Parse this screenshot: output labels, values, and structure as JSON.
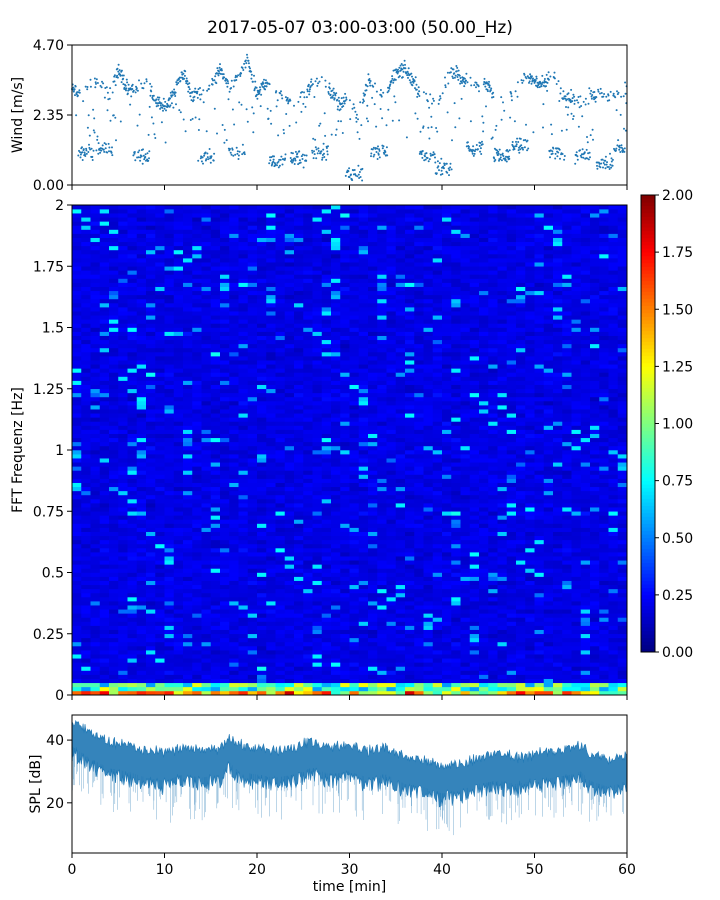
{
  "chart_data": {
    "title": "2017-05-07 03:00-03:00 (50.00_Hz)",
    "panels": [
      {
        "id": "wind",
        "type": "scatter",
        "ylabel": "Wind [m/s]",
        "ylim": [
          0,
          4.7
        ],
        "yticks": [
          0.0,
          2.35,
          4.7
        ],
        "ytick_labels": [
          "0.00",
          "2.35",
          "4.70"
        ],
        "xlim": [
          0,
          60
        ],
        "color": "#1f77b4",
        "trend": [
          [
            0,
            3.2
          ],
          [
            1,
            3.1
          ],
          [
            2,
            3.3
          ],
          [
            3,
            3.6
          ],
          [
            4,
            3.0
          ],
          [
            5,
            3.9
          ],
          [
            6,
            3.2
          ],
          [
            7,
            3.3
          ],
          [
            8,
            3.5
          ],
          [
            9,
            2.8
          ],
          [
            10,
            2.6
          ],
          [
            11,
            3.1
          ],
          [
            12,
            3.8
          ],
          [
            13,
            3.0
          ],
          [
            14,
            3.1
          ],
          [
            15,
            3.3
          ],
          [
            16,
            3.9
          ],
          [
            17,
            3.2
          ],
          [
            18,
            3.6
          ],
          [
            19,
            4.2
          ],
          [
            20,
            3.0
          ],
          [
            21,
            3.5
          ],
          [
            22,
            3.2
          ],
          [
            23,
            2.9
          ],
          [
            24,
            2.8
          ],
          [
            25,
            3.0
          ],
          [
            26,
            3.4
          ],
          [
            27,
            3.6
          ],
          [
            28,
            3.1
          ],
          [
            29,
            2.7
          ],
          [
            30,
            2.9
          ],
          [
            31,
            2.2
          ],
          [
            32,
            3.5
          ],
          [
            33,
            3.2
          ],
          [
            34,
            3.1
          ],
          [
            35,
            3.8
          ],
          [
            36,
            3.9
          ],
          [
            37,
            3.4
          ],
          [
            38,
            3.0
          ],
          [
            39,
            2.8
          ],
          [
            40,
            3.0
          ],
          [
            41,
            3.9
          ],
          [
            42,
            3.6
          ],
          [
            43,
            3.5
          ],
          [
            44,
            3.3
          ],
          [
            45,
            3.4
          ],
          [
            46,
            2.8
          ],
          [
            47,
            2.9
          ],
          [
            48,
            3.2
          ],
          [
            49,
            3.7
          ],
          [
            50,
            3.5
          ],
          [
            51,
            3.3
          ],
          [
            52,
            3.8
          ],
          [
            53,
            3.0
          ],
          [
            54,
            2.9
          ],
          [
            55,
            2.7
          ],
          [
            56,
            3.0
          ],
          [
            57,
            3.1
          ],
          [
            58,
            2.9
          ],
          [
            59,
            3.0
          ],
          [
            60,
            3.2
          ]
        ],
        "dips": [
          [
            1.5,
            1.1
          ],
          [
            3.5,
            1.2
          ],
          [
            7.5,
            1.0
          ],
          [
            14.5,
            1.0
          ],
          [
            17.8,
            1.1
          ],
          [
            22.2,
            0.8
          ],
          [
            24.5,
            0.9
          ],
          [
            26.8,
            1.1
          ],
          [
            30.5,
            0.4
          ],
          [
            33.2,
            1.1
          ],
          [
            38.5,
            1.0
          ],
          [
            40.2,
            0.6
          ],
          [
            43.5,
            1.2
          ],
          [
            46.5,
            1.0
          ],
          [
            48.5,
            1.3
          ],
          [
            52.5,
            1.1
          ],
          [
            55.2,
            1.0
          ],
          [
            57.6,
            0.8
          ],
          [
            59.5,
            1.2
          ]
        ]
      },
      {
        "id": "spectrogram",
        "type": "heatmap",
        "ylabel": "FFT Frequenz [Hz]",
        "ylim": [
          0,
          2
        ],
        "yticks": [
          0,
          0.25,
          0.5,
          0.75,
          1,
          1.25,
          1.5,
          1.75,
          2
        ],
        "ytick_labels": [
          "0",
          "0.25",
          "0.5",
          "0.75",
          "1",
          "1.25",
          "1.5",
          "1.75",
          "2"
        ],
        "xlim": [
          0,
          60
        ],
        "colormap": "jet",
        "colorbar": {
          "vmin": 0,
          "vmax": 2,
          "ticks": [
            0.0,
            0.25,
            0.5,
            0.75,
            1.0,
            1.25,
            1.5,
            1.75,
            2.0
          ],
          "tick_labels": [
            "0.00",
            "0.25",
            "0.50",
            "0.75",
            "1.00",
            "1.25",
            "1.50",
            "1.75",
            "2.00"
          ]
        },
        "typical_level": 0.2,
        "low_freq_level": 1.5
      },
      {
        "id": "spl",
        "type": "area",
        "ylabel": "SPL [dB]",
        "ylim": [
          4,
          48
        ],
        "yticks": [
          20,
          40
        ],
        "ytick_labels": [
          "20",
          "40"
        ],
        "xlabel": "time [min]",
        "xlim": [
          0,
          60
        ],
        "xticks": [
          0,
          10,
          20,
          30,
          40,
          50,
          60
        ],
        "xtick_labels": [
          "0",
          "10",
          "20",
          "30",
          "40",
          "50",
          "60"
        ],
        "color": "#1f77b4",
        "mean": [
          [
            0,
            42
          ],
          [
            2,
            38
          ],
          [
            4,
            35
          ],
          [
            6,
            34
          ],
          [
            8,
            32
          ],
          [
            10,
            31
          ],
          [
            12,
            33
          ],
          [
            14,
            32
          ],
          [
            16,
            33
          ],
          [
            17,
            37
          ],
          [
            18,
            34
          ],
          [
            20,
            33
          ],
          [
            22,
            32
          ],
          [
            24,
            33
          ],
          [
            26,
            35
          ],
          [
            28,
            33
          ],
          [
            30,
            34
          ],
          [
            32,
            32
          ],
          [
            34,
            33
          ],
          [
            36,
            30
          ],
          [
            38,
            29
          ],
          [
            40,
            27
          ],
          [
            42,
            28
          ],
          [
            44,
            30
          ],
          [
            46,
            31
          ],
          [
            48,
            30
          ],
          [
            50,
            31
          ],
          [
            52,
            32
          ],
          [
            54,
            33
          ],
          [
            55,
            34
          ],
          [
            56,
            31
          ],
          [
            58,
            29
          ],
          [
            60,
            31
          ]
        ],
        "band": [
          -6,
          5
        ]
      }
    ]
  }
}
